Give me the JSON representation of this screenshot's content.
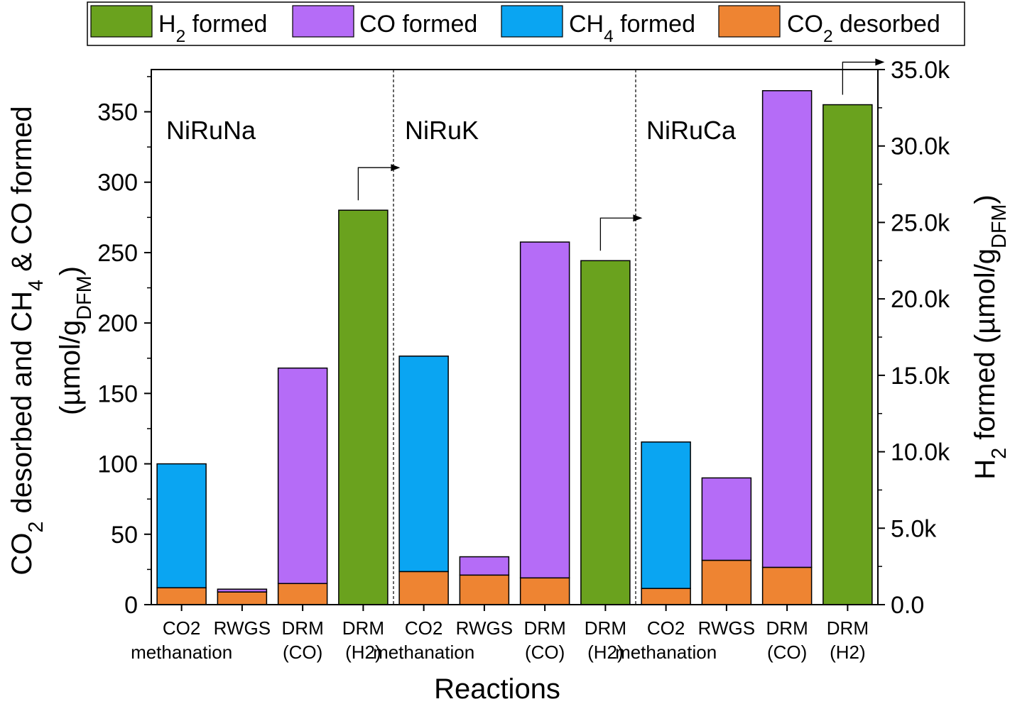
{
  "colors": {
    "h2": "#6aa21e",
    "co": "#b56cf7",
    "ch4": "#0aa5f2",
    "co2": "#ee8432"
  },
  "legend": [
    {
      "key": "h2",
      "base": "H",
      "sub": "2",
      "tail": " formed"
    },
    {
      "key": "co",
      "base": "CO formed",
      "sub": "",
      "tail": ""
    },
    {
      "key": "ch4",
      "base": "CH",
      "sub": "4",
      "tail": " formed"
    },
    {
      "key": "co2",
      "base": "CO",
      "sub": "2",
      "tail": " desorbed"
    }
  ],
  "axes": {
    "xlabel": "Reactions",
    "ylabel_left_line1_parts": [
      {
        "t": "CO"
      },
      {
        "t": "2",
        "sub": true
      },
      {
        "t": " desorbed and CH"
      },
      {
        "t": "4",
        "sub": true
      },
      {
        "t": " & CO formed"
      }
    ],
    "ylabel_left_line2_parts": [
      {
        "t": "(µmol/g"
      },
      {
        "t": "DFM",
        "sub": true
      },
      {
        "t": ")"
      }
    ],
    "ylabel_right_parts": [
      {
        "t": "H"
      },
      {
        "t": "2",
        "sub": true
      },
      {
        "t": " formed (µmol/g"
      },
      {
        "t": "DFM",
        "sub": true
      },
      {
        "t": ")"
      }
    ],
    "left_ticks": [
      "0",
      "50",
      "100",
      "150",
      "200",
      "250",
      "300",
      "350"
    ],
    "right_ticks": [
      "0.0",
      "5.0k",
      "10.0k",
      "15.0k",
      "20.0k",
      "25.0k",
      "30.0k",
      "35.0k"
    ]
  },
  "chart_data": {
    "type": "bar",
    "stacked": true,
    "dual_axis": true,
    "ylim_left": [
      0,
      380
    ],
    "ylim_right": [
      0,
      35000
    ],
    "groups": [
      "NiRuNa",
      "NiRuK",
      "NiRuCa"
    ],
    "categories": [
      {
        "line1": "CO2",
        "line2": "methanation",
        "group": "NiRuNa"
      },
      {
        "line1": "RWGS",
        "line2": "",
        "group": "NiRuNa"
      },
      {
        "line1": "DRM",
        "line2": "(CO)",
        "group": "NiRuNa"
      },
      {
        "line1": "DRM",
        "line2": "(H2)",
        "group": "NiRuNa"
      },
      {
        "line1": "CO2",
        "line2": "methanation",
        "group": "NiRuK"
      },
      {
        "line1": "RWGS",
        "line2": "",
        "group": "NiRuK"
      },
      {
        "line1": "DRM",
        "line2": "(CO)",
        "group": "NiRuK"
      },
      {
        "line1": "DRM",
        "line2": "(H2)",
        "group": "NiRuK"
      },
      {
        "line1": "CO2",
        "line2": "methanation",
        "group": "NiRuCa"
      },
      {
        "line1": "RWGS",
        "line2": "",
        "group": "NiRuCa"
      },
      {
        "line1": "DRM",
        "line2": "(CO)",
        "group": "NiRuCa"
      },
      {
        "line1": "DRM",
        "line2": "(H2)",
        "group": "NiRuCa"
      }
    ],
    "series": [
      {
        "name": "CO2 desorbed",
        "key": "co2",
        "axis": "left",
        "values": [
          12,
          9,
          15,
          0,
          23.5,
          21,
          19,
          0,
          11.5,
          31.5,
          26.5,
          0
        ]
      },
      {
        "name": "CH4 formed",
        "key": "ch4",
        "axis": "left",
        "values": [
          88,
          0,
          0,
          0,
          153,
          0,
          0,
          0,
          104,
          0,
          0,
          0
        ]
      },
      {
        "name": "CO formed",
        "key": "co",
        "axis": "left",
        "values": [
          0,
          2,
          153,
          0,
          0,
          13,
          238.5,
          0,
          0,
          58.5,
          338.5,
          0
        ]
      },
      {
        "name": "H2 formed",
        "key": "h2",
        "axis": "right",
        "values": [
          0,
          0,
          0,
          25800,
          0,
          0,
          0,
          22500,
          0,
          0,
          0,
          32700
        ]
      }
    ]
  }
}
